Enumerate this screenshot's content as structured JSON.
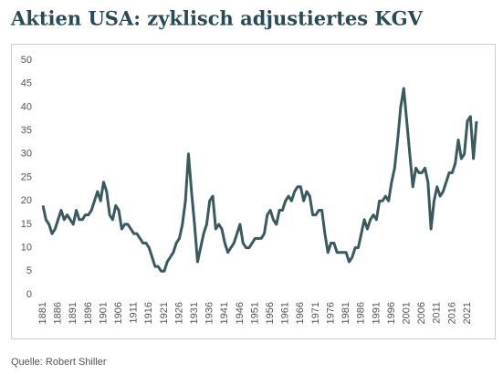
{
  "chart_data": {
    "type": "line",
    "title": "Aktien USA: zyklisch adjustiertes KGV",
    "source": "Quelle: Robert Shiller",
    "color": "#3b5a5f",
    "x": [
      1881,
      1882,
      1883,
      1884,
      1885,
      1886,
      1887,
      1888,
      1889,
      1890,
      1891,
      1892,
      1893,
      1894,
      1895,
      1896,
      1897,
      1898,
      1899,
      1900,
      1901,
      1902,
      1903,
      1904,
      1905,
      1906,
      1907,
      1908,
      1909,
      1910,
      1911,
      1912,
      1913,
      1914,
      1915,
      1916,
      1917,
      1918,
      1919,
      1920,
      1921,
      1922,
      1923,
      1924,
      1925,
      1926,
      1927,
      1928,
      1929,
      1930,
      1931,
      1932,
      1933,
      1934,
      1935,
      1936,
      1937,
      1938,
      1939,
      1940,
      1941,
      1942,
      1943,
      1944,
      1945,
      1946,
      1947,
      1948,
      1949,
      1950,
      1951,
      1952,
      1953,
      1954,
      1955,
      1956,
      1957,
      1958,
      1959,
      1960,
      1961,
      1962,
      1963,
      1964,
      1965,
      1966,
      1967,
      1968,
      1969,
      1970,
      1971,
      1972,
      1973,
      1974,
      1975,
      1976,
      1977,
      1978,
      1979,
      1980,
      1981,
      1982,
      1983,
      1984,
      1985,
      1986,
      1987,
      1988,
      1989,
      1990,
      1991,
      1992,
      1993,
      1994,
      1995,
      1996,
      1997,
      1998,
      1999,
      2000,
      2001,
      2002,
      2003,
      2004,
      2005,
      2006,
      2007,
      2008,
      2009,
      2010,
      2011,
      2012,
      2013,
      2014,
      2015,
      2016,
      2017,
      2018,
      2019,
      2020,
      2021,
      2022,
      2023,
      2024
    ],
    "values": [
      19,
      16,
      15,
      13,
      14,
      16,
      18,
      16,
      17,
      16,
      15,
      18,
      16,
      16,
      17,
      17,
      18,
      20,
      22,
      20,
      24,
      22,
      17,
      16,
      19,
      18,
      14,
      15,
      15,
      14,
      13,
      13,
      12,
      11,
      11,
      10,
      8,
      6,
      6,
      5,
      5,
      7,
      8,
      9,
      11,
      12,
      15,
      20,
      30,
      22,
      15,
      7,
      10,
      13,
      15,
      20,
      21,
      14,
      15,
      14,
      11,
      9,
      10,
      11,
      13,
      15,
      11,
      10,
      10,
      11,
      12,
      12,
      12,
      13,
      17,
      18,
      16,
      15,
      18,
      18,
      20,
      21,
      20,
      22,
      23,
      23,
      20,
      22,
      21,
      17,
      17,
      18,
      18,
      13,
      9,
      11,
      11,
      9,
      9,
      9,
      9,
      7,
      8,
      10,
      10,
      13,
      16,
      14,
      16,
      17,
      16,
      20,
      20,
      21,
      20,
      24,
      27,
      33,
      40,
      44,
      37,
      30,
      23,
      27,
      26,
      26,
      27,
      24,
      14,
      20,
      23,
      21,
      22,
      24,
      26,
      26,
      28,
      33,
      29,
      30,
      37,
      38,
      29,
      37
    ],
    "xlim": [
      1879,
      2026
    ],
    "xticks": [
      1881,
      1886,
      1891,
      1896,
      1901,
      1906,
      1911,
      1916,
      1921,
      1926,
      1931,
      1936,
      1941,
      1946,
      1951,
      1956,
      1961,
      1966,
      1971,
      1976,
      1981,
      1986,
      1991,
      1996,
      2001,
      2006,
      2011,
      2016,
      2021
    ],
    "ylim": [
      0,
      50
    ],
    "yticks": [
      0,
      5,
      10,
      15,
      20,
      25,
      30,
      35,
      40,
      45,
      50
    ],
    "grid": false
  }
}
